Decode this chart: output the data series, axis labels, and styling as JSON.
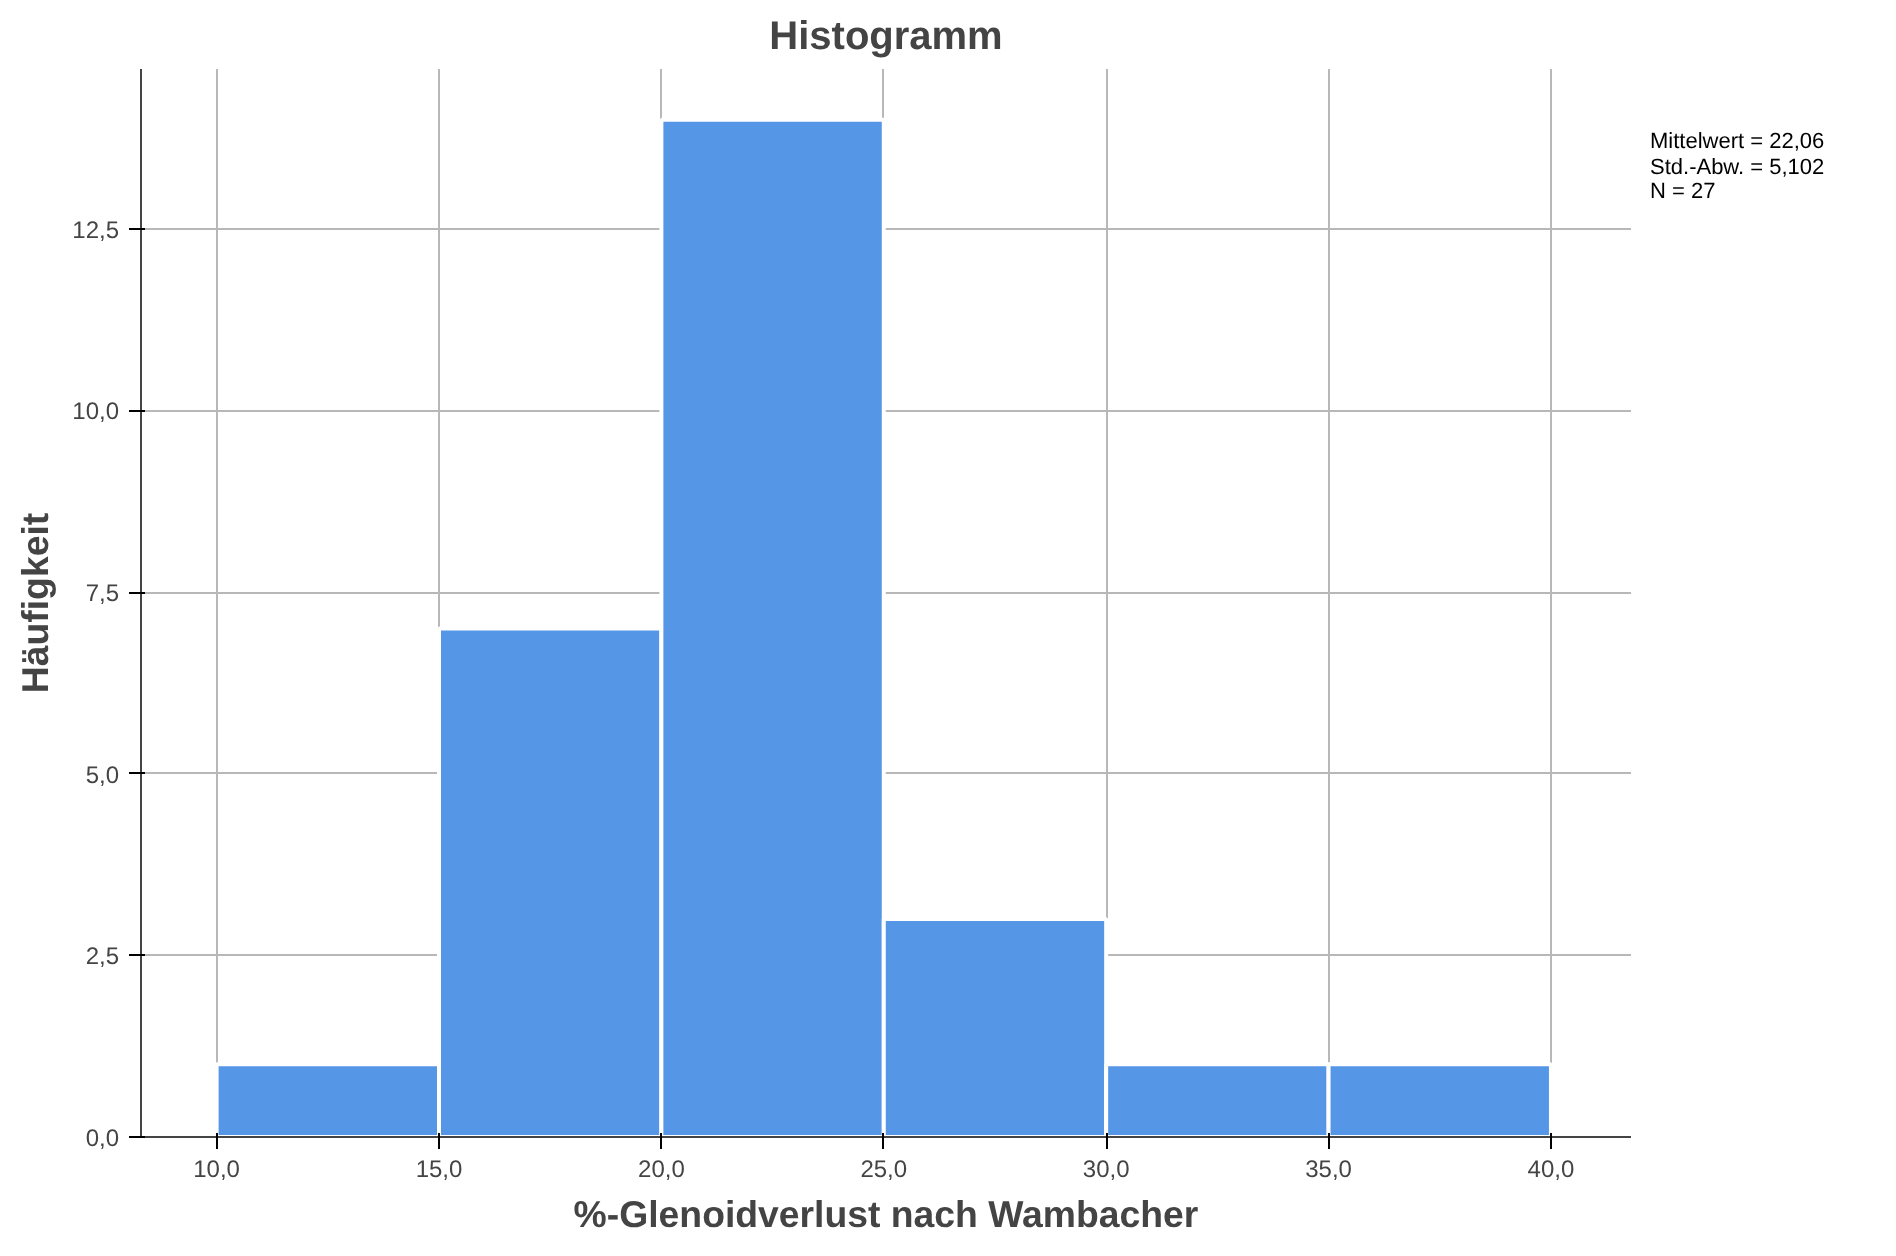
{
  "chart_data": {
    "type": "histogram",
    "title": "Histogramm",
    "xlabel": "%-Glenoidverlust nach Wambacher",
    "ylabel": "Häufigkeit",
    "bins": [
      10,
      15,
      20,
      25,
      30,
      35,
      40
    ],
    "values": [
      1,
      7,
      14,
      3,
      1,
      1
    ],
    "color": "#5596e6",
    "xlim": [
      8.3,
      41.8
    ],
    "ylim": [
      0,
      14.7
    ],
    "xticks": [
      {
        "value": 10,
        "label": "10,0"
      },
      {
        "value": 15,
        "label": "15,0"
      },
      {
        "value": 20,
        "label": "20,0"
      },
      {
        "value": 25,
        "label": "25,0"
      },
      {
        "value": 30,
        "label": "30,0"
      },
      {
        "value": 35,
        "label": "35,0"
      },
      {
        "value": 40,
        "label": "40,0"
      }
    ],
    "yticks": [
      {
        "value": 0,
        "label": "0,0"
      },
      {
        "value": 2.5,
        "label": "2,5"
      },
      {
        "value": 5,
        "label": "5,0"
      },
      {
        "value": 7.5,
        "label": "7,5"
      },
      {
        "value": 10,
        "label": "10,0"
      },
      {
        "value": 12.5,
        "label": "12,5"
      }
    ],
    "grid": true,
    "annotations": [
      "Mittelwert = 22,06",
      "Std.-Abw. = 5,102",
      "N = 27"
    ]
  }
}
